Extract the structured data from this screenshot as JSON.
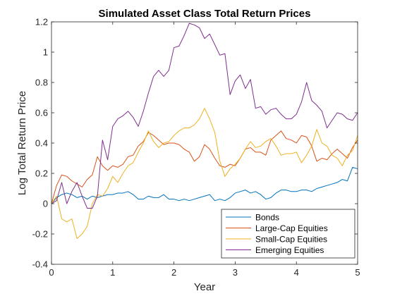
{
  "chart_data": {
    "type": "line",
    "title": "Simulated Asset Class Total Return Prices",
    "xlabel": "Year",
    "ylabel": "Log Total Return Price",
    "xlim": [
      0,
      5
    ],
    "ylim": [
      -0.4,
      1.2
    ],
    "xticks": [
      0,
      1,
      2,
      3,
      4,
      5
    ],
    "yticks": [
      -0.4,
      -0.2,
      0,
      0.2,
      0.4,
      0.6,
      0.8,
      1,
      1.2
    ],
    "xtick_labels": [
      "0",
      "1",
      "2",
      "3",
      "4",
      "5"
    ],
    "ytick_labels": [
      "-0.4",
      "-0.2",
      "0",
      "0.2",
      "0.4",
      "0.6",
      "0.8",
      "1",
      "1.2"
    ],
    "grid": false,
    "legend_position": "bottom-right",
    "series": [
      {
        "name": "Bonds",
        "color": "#0072BD",
        "x": [
          0,
          0.083,
          0.167,
          0.25,
          0.333,
          0.417,
          0.5,
          0.583,
          0.667,
          0.75,
          0.833,
          0.917,
          1.0,
          1.083,
          1.167,
          1.25,
          1.333,
          1.417,
          1.5,
          1.583,
          1.667,
          1.75,
          1.833,
          1.917,
          2.0,
          2.083,
          2.167,
          2.25,
          2.333,
          2.417,
          2.5,
          2.583,
          2.667,
          2.75,
          2.833,
          2.917,
          3.0,
          3.083,
          3.167,
          3.25,
          3.333,
          3.417,
          3.5,
          3.583,
          3.667,
          3.75,
          3.833,
          3.917,
          4.0,
          4.083,
          4.167,
          4.25,
          4.333,
          4.417,
          4.5,
          4.583,
          4.667,
          4.75,
          4.833,
          4.917,
          5.0
        ],
        "y": [
          0.0,
          0.04,
          0.06,
          0.07,
          0.06,
          0.04,
          0.05,
          0.03,
          0.05,
          0.04,
          0.05,
          0.06,
          0.06,
          0.07,
          0.07,
          0.08,
          0.06,
          0.03,
          0.03,
          0.05,
          0.04,
          0.04,
          0.06,
          0.03,
          0.03,
          0.02,
          0.03,
          0.02,
          0.03,
          0.04,
          0.05,
          0.06,
          0.02,
          0.03,
          0.02,
          0.04,
          0.07,
          0.08,
          0.09,
          0.07,
          0.08,
          0.06,
          0.03,
          0.04,
          0.07,
          0.09,
          0.09,
          0.08,
          0.08,
          0.09,
          0.09,
          0.08,
          0.1,
          0.11,
          0.12,
          0.13,
          0.14,
          0.16,
          0.15,
          0.24,
          0.23
        ]
      },
      {
        "name": "Large-Cap Equities",
        "color": "#D95319",
        "x": [
          0,
          0.083,
          0.167,
          0.25,
          0.333,
          0.417,
          0.5,
          0.583,
          0.667,
          0.75,
          0.833,
          0.917,
          1.0,
          1.083,
          1.167,
          1.25,
          1.333,
          1.417,
          1.5,
          1.583,
          1.667,
          1.75,
          1.833,
          1.917,
          2.0,
          2.083,
          2.167,
          2.25,
          2.333,
          2.417,
          2.5,
          2.583,
          2.667,
          2.75,
          2.833,
          2.917,
          3.0,
          3.083,
          3.167,
          3.25,
          3.333,
          3.417,
          3.5,
          3.583,
          3.667,
          3.75,
          3.833,
          3.917,
          4.0,
          4.083,
          4.167,
          4.25,
          4.333,
          4.417,
          4.5,
          4.583,
          4.667,
          4.75,
          4.833,
          4.917,
          5.0
        ],
        "y": [
          0.0,
          0.12,
          0.19,
          0.18,
          0.15,
          0.13,
          0.11,
          0.16,
          0.19,
          0.31,
          0.25,
          0.22,
          0.25,
          0.24,
          0.26,
          0.31,
          0.32,
          0.38,
          0.41,
          0.47,
          0.45,
          0.42,
          0.39,
          0.4,
          0.4,
          0.39,
          0.36,
          0.34,
          0.28,
          0.31,
          0.39,
          0.36,
          0.3,
          0.25,
          0.24,
          0.26,
          0.25,
          0.3,
          0.36,
          0.37,
          0.34,
          0.34,
          0.32,
          0.42,
          0.45,
          0.48,
          0.43,
          0.42,
          0.4,
          0.45,
          0.44,
          0.38,
          0.28,
          0.3,
          0.29,
          0.33,
          0.36,
          0.33,
          0.3,
          0.37,
          0.42
        ]
      },
      {
        "name": "Small-Cap Equities",
        "color": "#EDB120",
        "x": [
          0,
          0.083,
          0.167,
          0.25,
          0.333,
          0.417,
          0.5,
          0.583,
          0.667,
          0.75,
          0.833,
          0.917,
          1.0,
          1.083,
          1.167,
          1.25,
          1.333,
          1.417,
          1.5,
          1.583,
          1.667,
          1.75,
          1.833,
          1.917,
          2.0,
          2.083,
          2.167,
          2.25,
          2.333,
          2.417,
          2.5,
          2.583,
          2.667,
          2.75,
          2.833,
          2.917,
          3.0,
          3.083,
          3.167,
          3.25,
          3.333,
          3.417,
          3.5,
          3.583,
          3.667,
          3.75,
          3.833,
          3.917,
          4.0,
          4.083,
          4.167,
          4.25,
          4.333,
          4.417,
          4.5,
          4.583,
          4.667,
          4.75,
          4.833,
          4.917,
          5.0
        ],
        "y": [
          0.0,
          0.05,
          -0.1,
          -0.12,
          -0.1,
          -0.23,
          -0.2,
          -0.15,
          0.0,
          0.06,
          0.05,
          0.1,
          0.18,
          0.14,
          0.2,
          0.25,
          0.27,
          0.34,
          0.4,
          0.48,
          0.41,
          0.37,
          0.4,
          0.41,
          0.45,
          0.48,
          0.5,
          0.5,
          0.52,
          0.56,
          0.63,
          0.56,
          0.47,
          0.28,
          0.18,
          0.23,
          0.26,
          0.3,
          0.36,
          0.41,
          0.37,
          0.38,
          0.41,
          0.43,
          0.38,
          0.32,
          0.33,
          0.33,
          0.34,
          0.27,
          0.32,
          0.38,
          0.49,
          0.4,
          0.38,
          0.32,
          0.3,
          0.25,
          0.32,
          0.35,
          0.45
        ]
      },
      {
        "name": "Emerging Equities",
        "color": "#7E2F8E",
        "x": [
          0,
          0.083,
          0.167,
          0.25,
          0.333,
          0.417,
          0.5,
          0.583,
          0.667,
          0.75,
          0.833,
          0.917,
          1.0,
          1.083,
          1.167,
          1.25,
          1.333,
          1.417,
          1.5,
          1.583,
          1.667,
          1.75,
          1.833,
          1.917,
          2.0,
          2.083,
          2.167,
          2.25,
          2.333,
          2.417,
          2.5,
          2.583,
          2.667,
          2.75,
          2.833,
          2.917,
          3.0,
          3.083,
          3.167,
          3.25,
          3.333,
          3.417,
          3.5,
          3.583,
          3.667,
          3.75,
          3.833,
          3.917,
          4.0,
          4.083,
          4.167,
          4.25,
          4.333,
          4.417,
          4.5,
          4.583,
          4.667,
          4.75,
          4.833,
          4.917,
          5.0
        ],
        "y": [
          0.0,
          0.02,
          0.14,
          0.0,
          0.08,
          0.14,
          0.05,
          -0.03,
          -0.03,
          0.05,
          0.42,
          0.29,
          0.51,
          0.56,
          0.58,
          0.61,
          0.57,
          0.51,
          0.61,
          0.73,
          0.84,
          0.88,
          0.84,
          0.88,
          1.03,
          1.04,
          1.11,
          1.19,
          1.18,
          1.16,
          1.09,
          1.12,
          1.05,
          0.98,
          0.99,
          0.72,
          0.81,
          0.85,
          0.76,
          0.82,
          0.63,
          0.64,
          0.59,
          0.62,
          0.63,
          0.59,
          0.56,
          0.56,
          0.59,
          0.67,
          0.8,
          0.68,
          0.65,
          0.61,
          0.5,
          0.55,
          0.6,
          0.59,
          0.56,
          0.55,
          0.6
        ]
      }
    ]
  }
}
